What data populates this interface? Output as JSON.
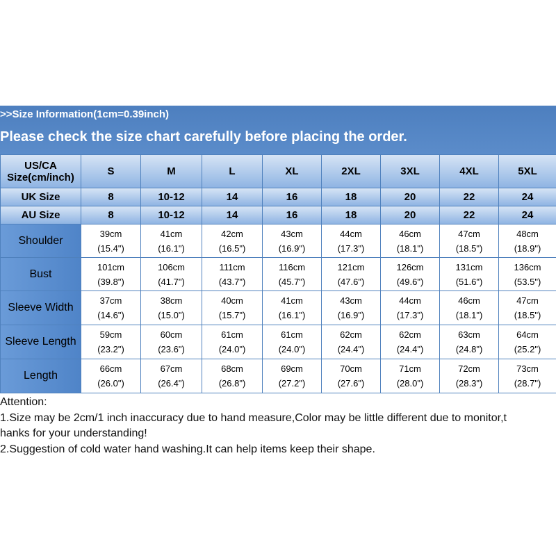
{
  "header": {
    "info": ">>Size Information(1cm=0.39inch)",
    "notice": "Please check the size chart carefully before placing the order."
  },
  "table": {
    "columns": [
      [
        "US/CA",
        "Size(cm/inch)"
      ],
      "S",
      "M",
      "L",
      "XL",
      "2XL",
      "3XL",
      "4XL",
      "5XL"
    ],
    "size_rows": [
      [
        "UK Size",
        "8",
        "10-12",
        "14",
        "16",
        "18",
        "20",
        "22",
        "24"
      ],
      [
        "AU Size",
        "8",
        "10-12",
        "14",
        "16",
        "18",
        "20",
        "22",
        "24"
      ]
    ],
    "rows": [
      {
        "label": "Shoulder",
        "cells": [
          [
            "39cm",
            "(15.4\")"
          ],
          [
            "41cm",
            "(16.1\")"
          ],
          [
            "42cm",
            "(16.5\")"
          ],
          [
            "43cm",
            "(16.9\")"
          ],
          [
            "44cm",
            "(17.3\")"
          ],
          [
            "46cm",
            "(18.1\")"
          ],
          [
            "47cm",
            "(18.5\")"
          ],
          [
            "48cm",
            "(18.9\")"
          ]
        ]
      },
      {
        "label": "Bust",
        "cells": [
          [
            "101cm",
            "(39.8\")"
          ],
          [
            "106cm",
            "(41.7\")"
          ],
          [
            "111cm",
            "(43.7\")"
          ],
          [
            "116cm",
            "(45.7\")"
          ],
          [
            "121cm",
            "(47.6\")"
          ],
          [
            "126cm",
            "(49.6\")"
          ],
          [
            "131cm",
            "(51.6\")"
          ],
          [
            "136cm",
            "(53.5\")"
          ]
        ]
      },
      {
        "label": "Sleeve Width",
        "cells": [
          [
            "37cm",
            "(14.6\")"
          ],
          [
            "38cm",
            "(15.0\")"
          ],
          [
            "40cm",
            "(15.7\")"
          ],
          [
            "41cm",
            "(16.1\")"
          ],
          [
            "43cm",
            "(16.9\")"
          ],
          [
            "44cm",
            "(17.3\")"
          ],
          [
            "46cm",
            "(18.1\")"
          ],
          [
            "47cm",
            "(18.5\")"
          ]
        ]
      },
      {
        "label": "Sleeve Length",
        "cells": [
          [
            "59cm",
            "(23.2\")"
          ],
          [
            "60cm",
            "(23.6\")"
          ],
          [
            "61cm",
            "(24.0\")"
          ],
          [
            "61cm",
            "(24.0\")"
          ],
          [
            "62cm",
            "(24.4\")"
          ],
          [
            "62cm",
            "(24.4\")"
          ],
          [
            "63cm",
            "(24.8\")"
          ],
          [
            "64cm",
            "(25.2\")"
          ]
        ]
      },
      {
        "label": "Length",
        "cells": [
          [
            "66cm",
            "(26.0\")"
          ],
          [
            "67cm",
            "(26.4\")"
          ],
          [
            "68cm",
            "(26.8\")"
          ],
          [
            "69cm",
            "(27.2\")"
          ],
          [
            "70cm",
            "(27.6\")"
          ],
          [
            "71cm",
            "(28.0\")"
          ],
          [
            "72cm",
            "(28.3\")"
          ],
          [
            "73cm",
            "(28.7\")"
          ]
        ]
      }
    ]
  },
  "attention": [
    "Attention:",
    "1.Size may be 2cm/1 inch inaccuracy due to hand measure,Color may be little different due to monitor,t",
    "hanks for your understanding!",
    "2.Suggestion of cold water hand washing.It can help items keep their shape."
  ]
}
